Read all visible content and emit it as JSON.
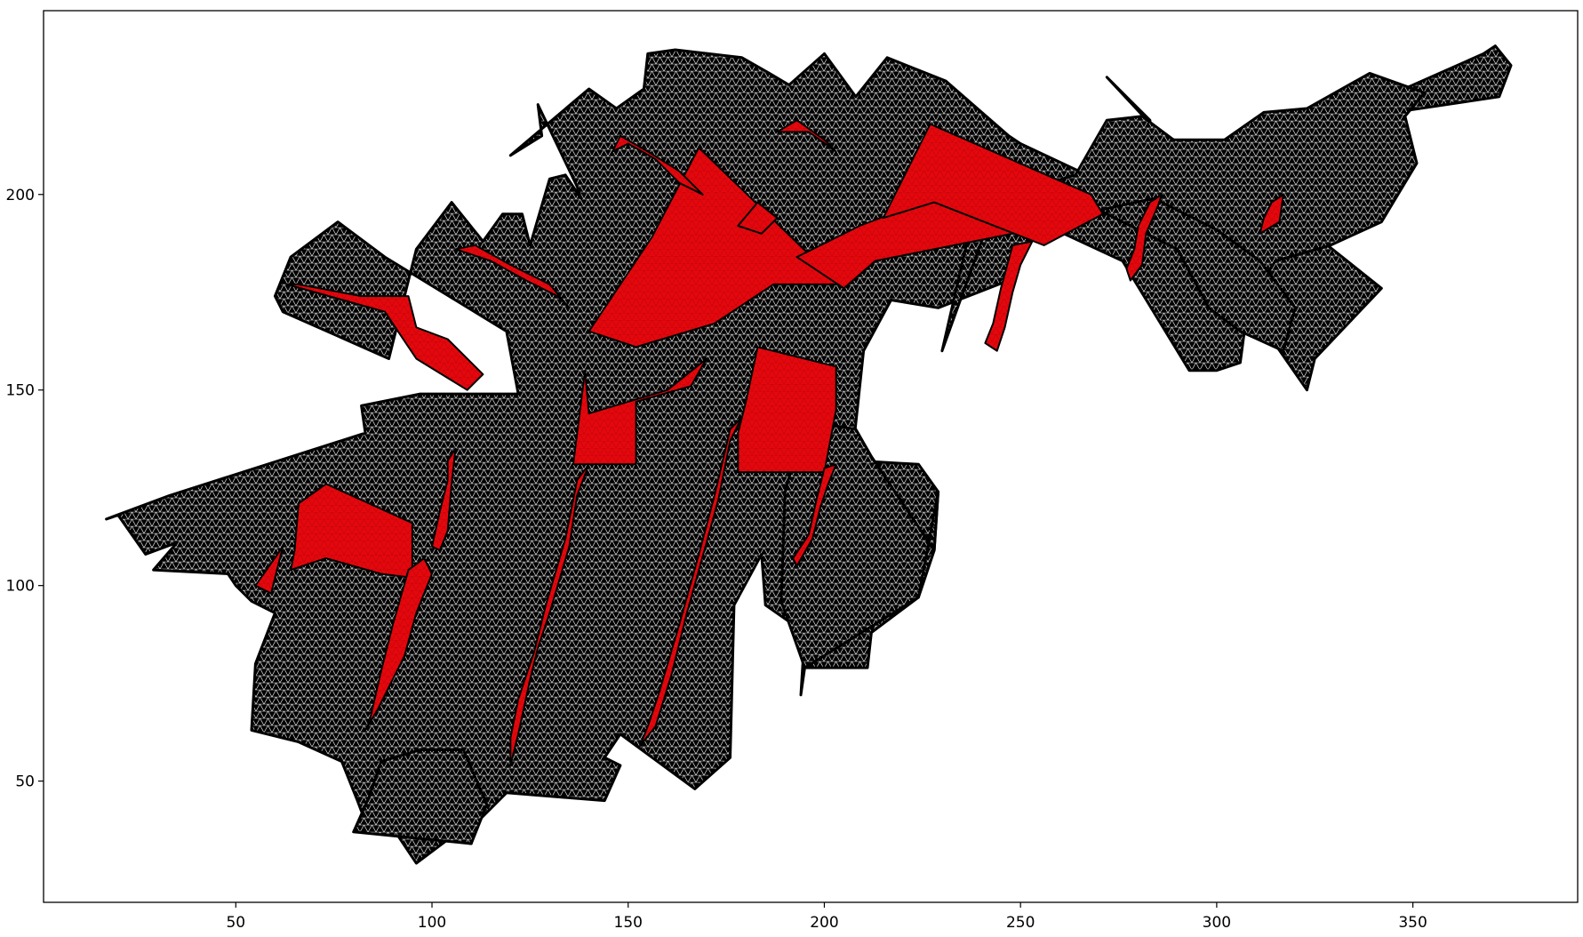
{
  "figure": {
    "kind": "triangulated-mesh-plot",
    "mesh_color": "#000000",
    "edge_color": "#ffffff",
    "highlight_color": "#e8000b",
    "background": "#ffffff"
  },
  "axes": {
    "xlim": [
      1,
      392
    ],
    "ylim": [
      19,
      247
    ],
    "x_ticks": [
      50,
      100,
      150,
      200,
      250,
      300,
      350
    ],
    "x_tick_labels": [
      "50",
      "100",
      "150",
      "200",
      "250",
      "300",
      "350"
    ],
    "y_ticks": [
      50,
      100,
      150,
      200
    ],
    "y_tick_labels": [
      "50",
      "100",
      "150",
      "200"
    ],
    "grid": false
  },
  "mesh_regions": [
    [
      [
        17,
        117
      ],
      [
        33,
        123
      ],
      [
        83,
        139
      ],
      [
        82,
        146
      ],
      [
        97,
        149
      ],
      [
        122,
        149
      ],
      [
        119,
        165
      ],
      [
        88,
        184
      ],
      [
        76,
        193
      ],
      [
        64,
        184
      ],
      [
        60,
        174
      ],
      [
        62,
        170
      ],
      [
        89,
        158
      ],
      [
        96,
        186
      ],
      [
        105,
        198
      ],
      [
        113,
        188
      ],
      [
        118,
        195
      ],
      [
        123,
        195
      ],
      [
        125,
        187
      ],
      [
        130,
        204
      ],
      [
        134,
        205
      ],
      [
        138,
        199
      ],
      [
        137,
        202
      ],
      [
        127,
        223
      ],
      [
        128,
        215
      ],
      [
        120,
        210
      ],
      [
        140,
        227
      ],
      [
        147,
        222
      ],
      [
        154,
        227
      ],
      [
        155,
        236
      ],
      [
        162,
        237
      ],
      [
        179,
        235
      ],
      [
        186,
        231
      ],
      [
        191,
        228
      ],
      [
        200,
        236
      ],
      [
        208,
        225
      ],
      [
        216,
        235
      ],
      [
        231,
        229
      ],
      [
        247,
        215
      ],
      [
        250,
        213
      ],
      [
        267,
        205
      ],
      [
        274,
        196
      ],
      [
        285,
        204
      ],
      [
        283,
        219
      ],
      [
        272,
        230
      ],
      [
        285,
        216
      ],
      [
        305,
        206
      ],
      [
        322,
        215
      ],
      [
        332,
        220
      ],
      [
        368,
        236
      ],
      [
        371,
        238
      ],
      [
        375,
        233
      ],
      [
        372,
        225
      ],
      [
        305,
        215
      ],
      [
        323,
        206
      ],
      [
        317,
        196
      ],
      [
        342,
        176
      ],
      [
        325,
        158
      ],
      [
        323,
        150
      ],
      [
        314,
        163
      ],
      [
        299,
        181
      ],
      [
        290,
        185
      ],
      [
        280,
        189
      ],
      [
        271,
        197
      ],
      [
        252,
        188
      ],
      [
        247,
        178
      ],
      [
        229,
        171
      ],
      [
        217,
        173
      ],
      [
        210,
        160
      ],
      [
        207,
        132
      ],
      [
        224,
        131
      ],
      [
        229,
        124
      ],
      [
        228,
        109
      ],
      [
        224,
        97
      ],
      [
        212,
        88
      ],
      [
        211,
        79
      ],
      [
        195,
        79
      ],
      [
        194,
        72
      ],
      [
        195,
        88
      ],
      [
        185,
        95
      ],
      [
        184,
        108
      ],
      [
        177,
        95
      ],
      [
        176,
        56
      ],
      [
        167,
        48
      ],
      [
        148,
        62
      ],
      [
        144,
        56
      ],
      [
        148,
        54
      ],
      [
        144,
        45
      ],
      [
        119,
        47
      ],
      [
        110,
        38
      ],
      [
        110,
        34
      ],
      [
        104,
        35
      ],
      [
        96,
        29
      ],
      [
        90,
        38
      ],
      [
        84,
        37
      ],
      [
        81,
        45
      ],
      [
        77,
        55
      ],
      [
        66,
        60
      ],
      [
        54,
        63
      ],
      [
        55,
        80
      ],
      [
        60,
        93
      ],
      [
        54,
        96
      ],
      [
        50,
        100
      ],
      [
        48,
        103
      ],
      [
        29,
        104
      ],
      [
        35,
        111
      ],
      [
        27,
        108
      ],
      [
        20,
        118
      ]
    ],
    [
      [
        230,
        160
      ],
      [
        238,
        195
      ],
      [
        244,
        199
      ],
      [
        261,
        190
      ],
      [
        276,
        183
      ],
      [
        293,
        155
      ],
      [
        300,
        155
      ],
      [
        306,
        157
      ],
      [
        308,
        172
      ],
      [
        315,
        183
      ],
      [
        329,
        187
      ],
      [
        342,
        193
      ],
      [
        351,
        208
      ],
      [
        348,
        220
      ],
      [
        353,
        226
      ],
      [
        339,
        231
      ],
      [
        323,
        222
      ],
      [
        312,
        221
      ],
      [
        302,
        214
      ],
      [
        289,
        214
      ],
      [
        281,
        220
      ],
      [
        272,
        219
      ],
      [
        264,
        205
      ],
      [
        244,
        199
      ]
    ],
    [
      [
        195,
        79
      ],
      [
        224,
        97
      ],
      [
        229,
        124
      ],
      [
        228,
        109
      ],
      [
        212,
        133
      ],
      [
        208,
        140
      ],
      [
        195,
        142
      ],
      [
        190,
        124
      ],
      [
        189,
        96
      ]
    ],
    [
      [
        80,
        37
      ],
      [
        110,
        34
      ],
      [
        114,
        44
      ],
      [
        108,
        58
      ],
      [
        97,
        58
      ],
      [
        87,
        55
      ],
      [
        84,
        46
      ]
    ],
    [
      [
        270,
        196
      ],
      [
        290,
        186
      ],
      [
        298,
        171
      ],
      [
        306,
        165
      ],
      [
        317,
        160
      ],
      [
        320,
        171
      ],
      [
        311,
        183
      ],
      [
        300,
        191
      ],
      [
        284,
        199
      ]
    ]
  ],
  "highlight_regions": [
    [
      [
        63,
        177
      ],
      [
        88,
        170
      ],
      [
        96,
        158
      ],
      [
        109,
        150
      ],
      [
        113,
        154
      ],
      [
        104,
        163
      ],
      [
        96,
        166
      ],
      [
        94,
        174
      ],
      [
        82,
        174
      ],
      [
        66,
        177
      ]
    ],
    [
      [
        140,
        165
      ],
      [
        156,
        189
      ],
      [
        168,
        212
      ],
      [
        204,
        177
      ],
      [
        187,
        177
      ],
      [
        172,
        167
      ],
      [
        152,
        161
      ]
    ],
    [
      [
        193,
        184
      ],
      [
        209,
        192
      ],
      [
        230,
        200
      ],
      [
        253,
        191
      ],
      [
        213,
        183
      ],
      [
        205,
        176
      ]
    ],
    [
      [
        215,
        194
      ],
      [
        227,
        218
      ],
      [
        268,
        200
      ],
      [
        271,
        195
      ],
      [
        256,
        187
      ],
      [
        228,
        198
      ]
    ],
    [
      [
        178,
        129
      ],
      [
        200,
        129
      ],
      [
        203,
        145
      ],
      [
        203,
        156
      ],
      [
        183,
        161
      ],
      [
        180,
        147
      ],
      [
        178,
        139
      ]
    ],
    [
      [
        140,
        144
      ],
      [
        139,
        155
      ],
      [
        136,
        131
      ],
      [
        152,
        131
      ],
      [
        152,
        147
      ],
      [
        166,
        151
      ],
      [
        170,
        158
      ],
      [
        160,
        150
      ]
    ],
    [
      [
        64,
        104
      ],
      [
        65,
        109
      ],
      [
        66,
        121
      ],
      [
        73,
        126
      ],
      [
        95,
        116
      ],
      [
        95,
        102
      ],
      [
        87,
        103
      ],
      [
        73,
        107
      ]
    ],
    [
      [
        59,
        98
      ],
      [
        62,
        110
      ],
      [
        55,
        100
      ]
    ],
    [
      [
        83,
        63
      ],
      [
        86,
        68
      ],
      [
        93,
        82
      ],
      [
        96,
        93
      ],
      [
        100,
        103
      ],
      [
        98,
        107
      ],
      [
        94,
        104
      ],
      [
        90,
        90
      ],
      [
        87,
        78
      ],
      [
        84,
        65
      ]
    ],
    [
      [
        100,
        110
      ],
      [
        102,
        119
      ],
      [
        104,
        127
      ],
      [
        104,
        132
      ],
      [
        106,
        135
      ],
      [
        105,
        126
      ],
      [
        104,
        114
      ],
      [
        102,
        109
      ]
    ],
    [
      [
        120,
        54
      ],
      [
        122,
        62
      ],
      [
        125,
        76
      ],
      [
        127,
        84
      ],
      [
        130,
        93
      ],
      [
        135,
        110
      ],
      [
        137,
        123
      ],
      [
        140,
        131
      ],
      [
        137,
        127
      ],
      [
        134,
        112
      ],
      [
        129,
        95
      ],
      [
        126,
        83
      ],
      [
        122,
        71
      ],
      [
        120,
        61
      ]
    ],
    [
      [
        153,
        59
      ],
      [
        157,
        64
      ],
      [
        161,
        77
      ],
      [
        165,
        93
      ],
      [
        170,
        111
      ],
      [
        173,
        122
      ],
      [
        176,
        137
      ],
      [
        179,
        143
      ],
      [
        176,
        140
      ],
      [
        172,
        123
      ],
      [
        168,
        108
      ],
      [
        163,
        90
      ],
      [
        158,
        73
      ],
      [
        155,
        64
      ]
    ],
    [
      [
        193,
        105
      ],
      [
        197,
        112
      ],
      [
        199,
        120
      ],
      [
        201,
        126
      ],
      [
        203,
        131
      ],
      [
        200,
        130
      ],
      [
        198,
        122
      ],
      [
        196,
        113
      ],
      [
        192,
        107
      ]
    ],
    [
      [
        244,
        160
      ],
      [
        246,
        166
      ],
      [
        248,
        175
      ],
      [
        250,
        182
      ],
      [
        253,
        188
      ],
      [
        248,
        187
      ],
      [
        245,
        176
      ],
      [
        243,
        167
      ],
      [
        241,
        162
      ]
    ],
    [
      [
        278,
        178
      ],
      [
        281,
        182
      ],
      [
        282,
        190
      ],
      [
        285,
        197
      ],
      [
        286,
        200
      ],
      [
        283,
        198
      ],
      [
        280,
        192
      ],
      [
        279,
        186
      ],
      [
        277,
        181
      ]
    ],
    [
      [
        311,
        190
      ],
      [
        316,
        193
      ],
      [
        317,
        200
      ],
      [
        314,
        198
      ],
      [
        312,
        194
      ]
    ],
    [
      [
        106,
        186
      ],
      [
        115,
        183
      ],
      [
        124,
        178
      ],
      [
        132,
        174
      ],
      [
        135,
        171
      ],
      [
        130,
        177
      ],
      [
        120,
        182
      ],
      [
        111,
        187
      ]
    ],
    [
      [
        146,
        211
      ],
      [
        150,
        213
      ],
      [
        157,
        209
      ],
      [
        163,
        203
      ],
      [
        169,
        200
      ],
      [
        163,
        206
      ],
      [
        155,
        211
      ],
      [
        148,
        215
      ]
    ],
    [
      [
        188,
        216
      ],
      [
        193,
        219
      ],
      [
        200,
        214
      ],
      [
        203,
        211
      ],
      [
        196,
        216
      ]
    ],
    [
      [
        178,
        192
      ],
      [
        183,
        198
      ],
      [
        188,
        194
      ],
      [
        184,
        190
      ]
    ]
  ]
}
